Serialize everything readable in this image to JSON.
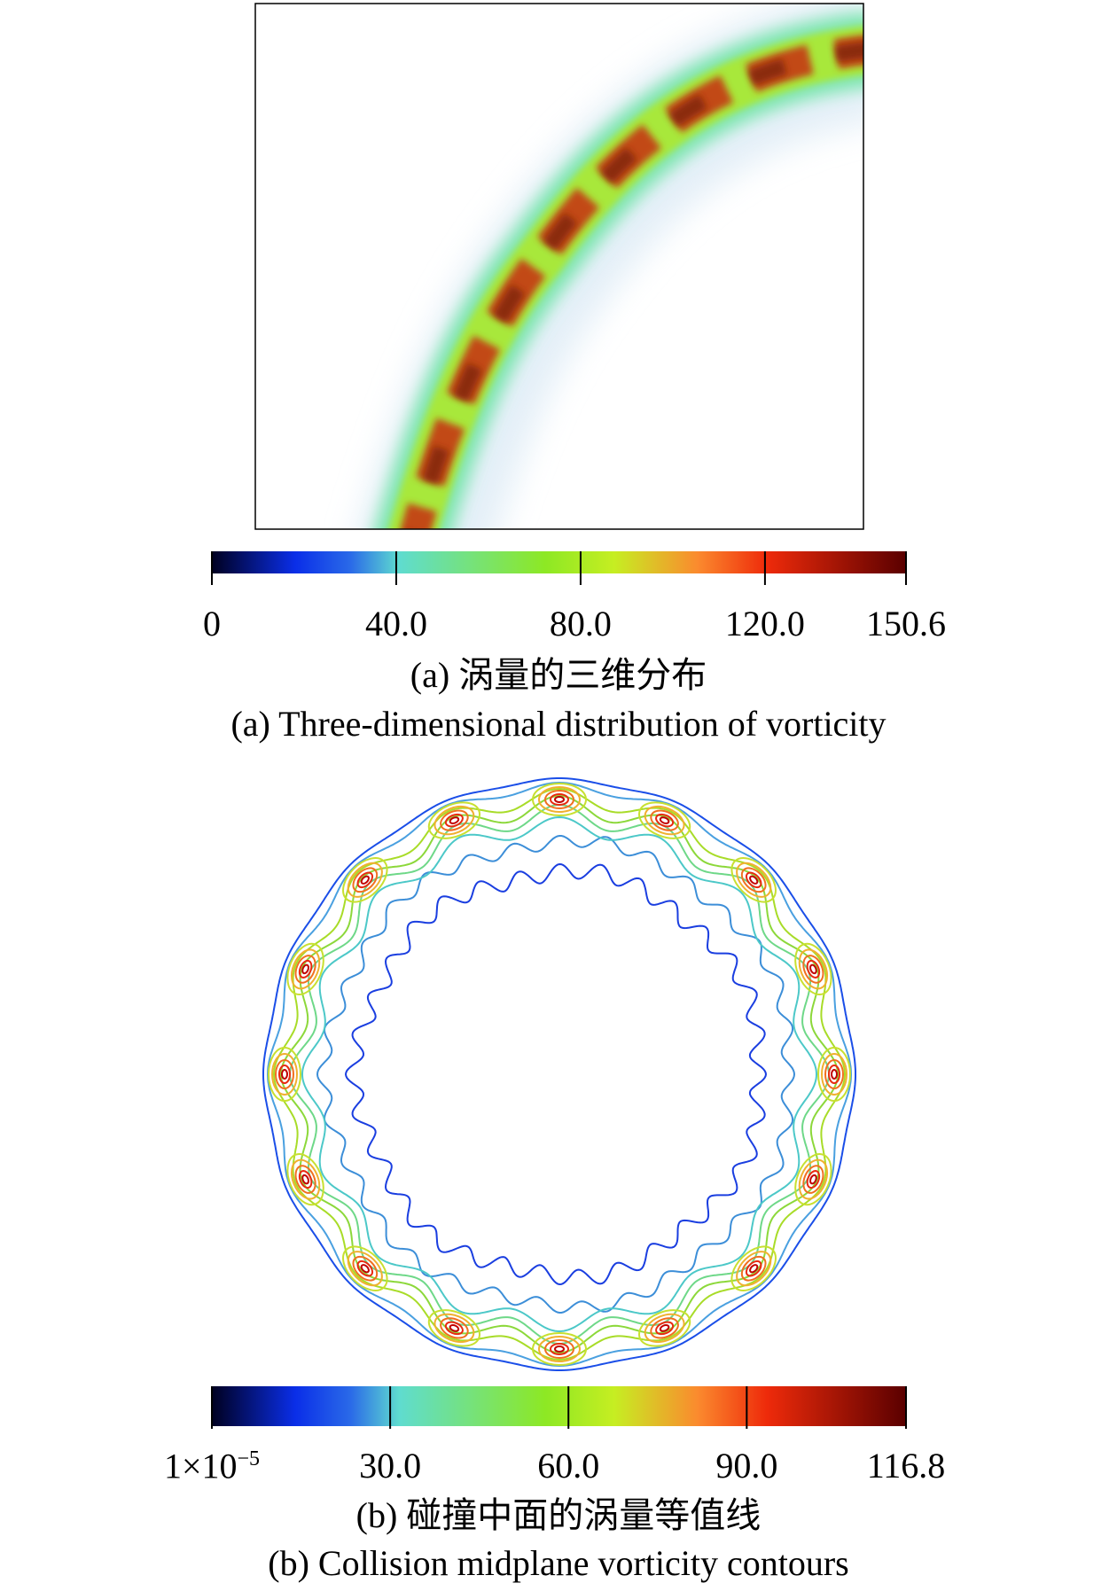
{
  "chart_data": [
    {
      "type": "heatmap",
      "panel": "a",
      "description_caption_zh": "(a) 涡量的三维分布",
      "caption_en": "(a) Three-dimensional distribution of vorticity",
      "colorbar": {
        "range": [
          0,
          150.6
        ],
        "ticks": [
          0,
          40.0,
          80.0,
          120.0,
          150.6
        ],
        "tick_labels": [
          "0",
          "40.0",
          "80.0",
          "120.0",
          "150.6"
        ],
        "colormap": [
          "#000020",
          "#0a2ee8",
          "#5fdccf",
          "#8de824",
          "#c6ee22",
          "#fb8a2e",
          "#ee2a0a",
          "#6a0000"
        ]
      },
      "grid": false
    },
    {
      "type": "contour",
      "panel": "b",
      "caption_zh": "(b) 碰撞中面的涡量等值线",
      "caption_en": "(b) Collision midplane vorticity contours",
      "colorbar": {
        "range": [
          1e-05,
          116.8
        ],
        "ticks": [
          1e-05,
          30.0,
          60.0,
          90.0,
          116.8
        ],
        "tick_labels": [
          "1×10",
          "30.0",
          "60.0",
          "90.0",
          "116.8"
        ],
        "first_tick_exponent": "−5",
        "colormap": [
          "#000020",
          "#0a2ee8",
          "#5fdccf",
          "#8de824",
          "#c6ee22",
          "#fb8a2e",
          "#ee2a0a",
          "#6a0000"
        ]
      },
      "peak_count": 16,
      "grid": false
    }
  ]
}
